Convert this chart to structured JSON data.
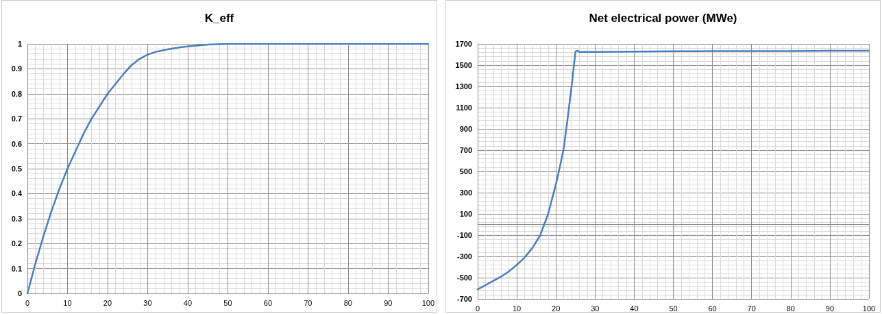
{
  "chart_data": [
    {
      "type": "line",
      "title": "K_eff",
      "x": [
        0,
        2,
        4,
        6,
        8,
        10,
        12,
        14,
        16,
        18,
        20,
        22,
        24,
        26,
        28,
        30,
        32,
        35,
        38,
        40,
        45,
        50,
        60,
        70,
        80,
        90,
        100
      ],
      "series": [
        {
          "color": "#4a7ebb",
          "values": [
            0,
            0.12,
            0.23,
            0.33,
            0.42,
            0.5,
            0.57,
            0.64,
            0.7,
            0.75,
            0.8,
            0.84,
            0.88,
            0.915,
            0.94,
            0.957,
            0.968,
            0.978,
            0.986,
            0.99,
            0.997,
            1,
            1,
            1,
            1,
            1,
            1
          ]
        }
      ],
      "xlim": [
        0,
        100
      ],
      "xticks": [
        0,
        10,
        20,
        30,
        40,
        50,
        60,
        70,
        80,
        90,
        100
      ],
      "ylim": [
        0,
        1
      ],
      "yticks": [
        0,
        0.1,
        0.2,
        0.3,
        0.4,
        0.5,
        0.6,
        0.7,
        0.8,
        0.9,
        1
      ],
      "grid": true,
      "marker": "none",
      "line_style": "solid"
    },
    {
      "type": "line",
      "title": "Net electrical power (MWe)",
      "x": [
        0,
        2,
        4,
        6,
        8,
        10,
        12,
        14,
        16,
        18,
        20,
        21,
        22,
        23,
        24,
        25,
        25.5,
        26,
        30,
        40,
        50,
        60,
        70,
        80,
        90,
        100
      ],
      "series": [
        {
          "color": "#4a7ebb",
          "values": [
            -610,
            -570,
            -530,
            -490,
            -440,
            -380,
            -310,
            -220,
            -100,
            100,
            380,
            540,
            720,
            1000,
            1300,
            1630,
            1635,
            1625,
            1625,
            1628,
            1630,
            1632,
            1632,
            1633,
            1635,
            1635
          ]
        }
      ],
      "xlim": [
        0,
        100
      ],
      "xticks": [
        0,
        10,
        20,
        30,
        40,
        50,
        60,
        70,
        80,
        90,
        100
      ],
      "ylim": [
        -700,
        1700
      ],
      "yticks": [
        -700,
        -500,
        -300,
        -100,
        100,
        300,
        500,
        700,
        900,
        1100,
        1300,
        1500,
        1700
      ],
      "grid": true,
      "marker": "none",
      "line_style": "solid"
    }
  ]
}
